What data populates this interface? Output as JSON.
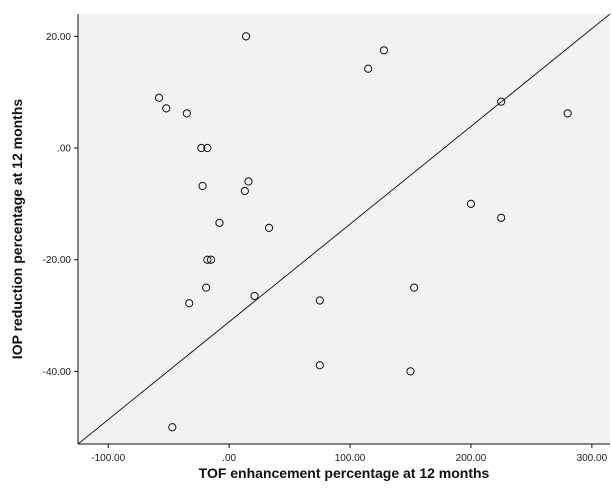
{
  "chart_data": {
    "type": "scatter",
    "title": "",
    "xlabel": "TOF enhancement percentage at 12 months",
    "ylabel": "IOP reduction percentage at 12 months",
    "xlim": [
      -125,
      315
    ],
    "ylim": [
      -53,
      24
    ],
    "x_ticks": [
      -100,
      0,
      100,
      200,
      300
    ],
    "x_tick_labels": [
      "-100.00",
      ".00",
      "100.00",
      "200.00",
      "300.00"
    ],
    "y_ticks": [
      -40,
      -20,
      0,
      20
    ],
    "y_tick_labels": [
      "-40.00",
      "-20.00",
      ".00",
      "20.00"
    ],
    "grid": false,
    "background_color": "#f2f2f2",
    "reference_line": {
      "from": [
        -125,
        -53
      ],
      "to": [
        315,
        24
      ]
    },
    "points": [
      {
        "x": 14,
        "y": 20
      },
      {
        "x": 128,
        "y": 17.5
      },
      {
        "x": 115,
        "y": 14.2
      },
      {
        "x": -58,
        "y": 9
      },
      {
        "x": -52,
        "y": 7.1
      },
      {
        "x": -35,
        "y": 6.2
      },
      {
        "x": 225,
        "y": 8.3
      },
      {
        "x": 280,
        "y": 6.2
      },
      {
        "x": -23,
        "y": 0
      },
      {
        "x": -18,
        "y": 0
      },
      {
        "x": -22,
        "y": -6.8
      },
      {
        "x": 16,
        "y": -6
      },
      {
        "x": 13,
        "y": -7.7
      },
      {
        "x": -8,
        "y": -13.4
      },
      {
        "x": 33,
        "y": -14.3
      },
      {
        "x": 200,
        "y": -10
      },
      {
        "x": 225,
        "y": -12.5
      },
      {
        "x": -18,
        "y": -20
      },
      {
        "x": -15,
        "y": -20
      },
      {
        "x": -19,
        "y": -25
      },
      {
        "x": 153,
        "y": -25
      },
      {
        "x": 21,
        "y": -26.5
      },
      {
        "x": -33,
        "y": -27.8
      },
      {
        "x": 75,
        "y": -27.3
      },
      {
        "x": 75,
        "y": -38.9
      },
      {
        "x": 150,
        "y": -40
      },
      {
        "x": -47,
        "y": -50
      }
    ]
  }
}
